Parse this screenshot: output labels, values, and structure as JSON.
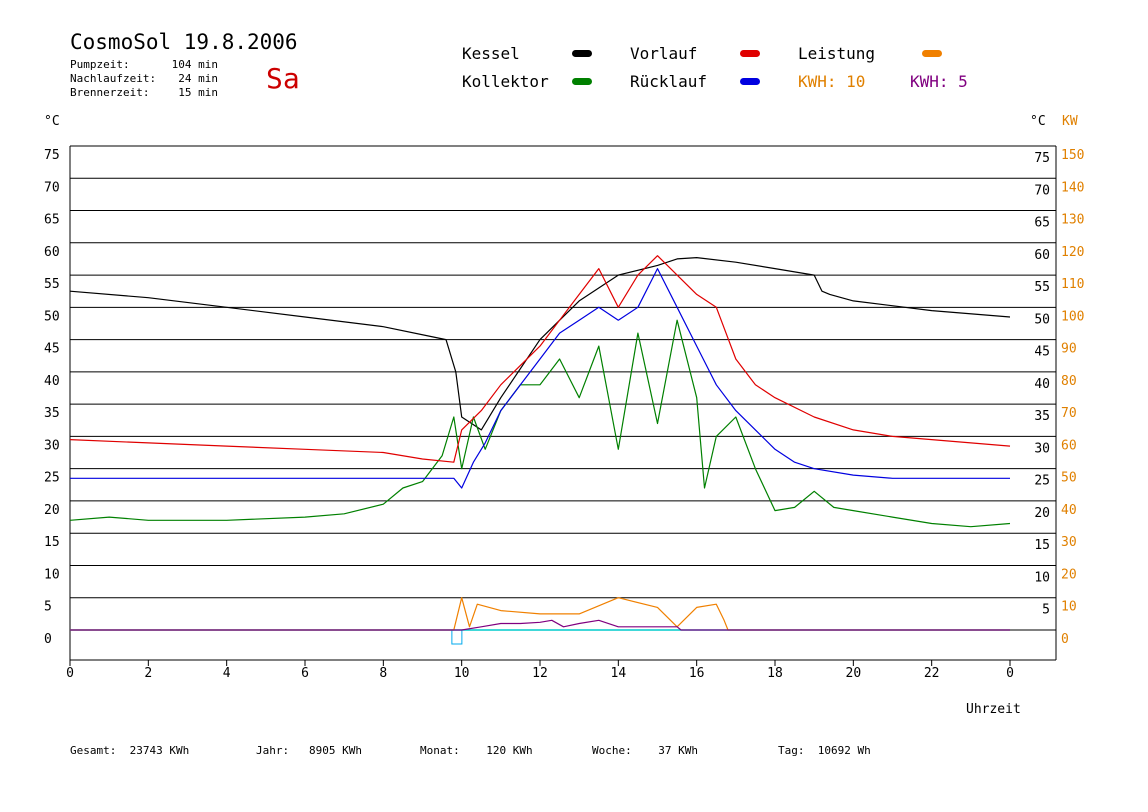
{
  "header": {
    "title": "CosmoSol 19.8.2006",
    "day": "Sa",
    "info": [
      {
        "label": "Pumpzeit:",
        "value": "104 min"
      },
      {
        "label": "Nachlaufzeit:",
        "value": "24 min"
      },
      {
        "label": "Brennerzeit:",
        "value": "15 min"
      }
    ]
  },
  "legend": {
    "kessel": {
      "label": "Kessel",
      "color": "#000000"
    },
    "kollektor": {
      "label": "Kollektor",
      "color": "#008000"
    },
    "vorlauf": {
      "label": "Vorlauf",
      "color": "#e00000"
    },
    "ruecklauf": {
      "label": "Rücklauf",
      "color": "#0000e0"
    },
    "leistung": {
      "label": "Leistung",
      "color": "#f08000"
    },
    "kwh1": {
      "label": "KWH:",
      "value": "10",
      "color": "#e08000"
    },
    "kwh2": {
      "label": "KWH:",
      "value": "5",
      "color": "#800080"
    }
  },
  "axes": {
    "left_unit": "°C",
    "right_unit_c": "°C",
    "right_unit_kw": "KW",
    "x_label": "Uhrzeit"
  },
  "footer": [
    {
      "label": "Gesamt:",
      "value": "23743 KWh"
    },
    {
      "label": "Jahr:",
      "value": "8905 KWh"
    },
    {
      "label": "Monat:",
      "value": "120 KWh"
    },
    {
      "label": "Woche:",
      "value": "37 KWh"
    },
    {
      "label": "Tag:",
      "value": "10692 Wh"
    }
  ],
  "chart_data": {
    "type": "line",
    "x_label": "Uhrzeit",
    "x_range": [
      0,
      24
    ],
    "x_ticks": [
      "0",
      "2",
      "4",
      "6",
      "8",
      "10",
      "12",
      "14",
      "16",
      "18",
      "20",
      "22",
      "0"
    ],
    "y_left_range": [
      0,
      75
    ],
    "y_left_ticks": [
      "0",
      "5",
      "10",
      "15",
      "20",
      "25",
      "30",
      "35",
      "40",
      "45",
      "50",
      "55",
      "60",
      "65",
      "70",
      "75"
    ],
    "y_right_c_ticks": [
      "5",
      "10",
      "15",
      "20",
      "25",
      "30",
      "35",
      "40",
      "45",
      "50",
      "55",
      "60",
      "65",
      "70",
      "75"
    ],
    "y_right_kw_ticks": [
      "0",
      "10",
      "20",
      "30",
      "40",
      "50",
      "60",
      "70",
      "80",
      "90",
      "100",
      "110",
      "120",
      "130",
      "140",
      "150"
    ],
    "grid": "horizontal",
    "series": [
      {
        "name": "Kessel",
        "key": "kessel",
        "color": "#000000",
        "x": [
          0,
          2,
          4,
          6,
          8,
          9.2,
          9.6,
          9.85,
          10,
          10.5,
          11,
          12,
          13,
          14,
          15,
          15.5,
          16,
          17,
          18,
          19,
          19.2,
          19.4,
          20,
          22,
          24
        ],
        "y": [
          52.5,
          51.5,
          50,
          48.5,
          47,
          45.5,
          45,
          40,
          33,
          31,
          36,
          45,
          51,
          55,
          56.5,
          57.5,
          57.7,
          57,
          56,
          55,
          52.5,
          52,
          51,
          49.5,
          48.5
        ]
      },
      {
        "name": "Kollektor",
        "key": "kollektor",
        "color": "#008000",
        "x": [
          0,
          1,
          2,
          4,
          6,
          7,
          8,
          8.5,
          9,
          9.5,
          9.8,
          10,
          10.3,
          10.6,
          11,
          11.5,
          12,
          12.5,
          13,
          13.5,
          14,
          14.5,
          15,
          15.5,
          16,
          16.2,
          16.5,
          17,
          17.5,
          18,
          18.5,
          19,
          19.5,
          20,
          21,
          22,
          23,
          24
        ],
        "y": [
          17,
          17.5,
          17,
          17,
          17.5,
          18,
          19.5,
          22,
          23,
          27,
          33,
          25,
          33,
          28,
          34,
          38,
          38,
          42,
          36,
          44,
          28,
          46,
          32,
          48,
          36,
          22,
          30,
          33,
          25,
          18.5,
          19,
          21.5,
          19,
          18.5,
          17.5,
          16.5,
          16,
          16.5
        ]
      },
      {
        "name": "Vorlauf",
        "key": "vorlauf",
        "color": "#e00000",
        "x": [
          0,
          2,
          4,
          6,
          8,
          9,
          9.8,
          10,
          10.5,
          11,
          11.5,
          12,
          12.5,
          13,
          13.5,
          14,
          14.5,
          15,
          15.5,
          16,
          16.5,
          17,
          17.5,
          18,
          19,
          20,
          21,
          22,
          23,
          24
        ],
        "y": [
          29.5,
          29,
          28.5,
          28,
          27.5,
          26.5,
          26,
          31,
          34,
          38,
          41,
          44,
          48,
          52,
          56,
          50,
          55,
          58,
          55,
          52,
          50,
          42,
          38,
          36,
          33,
          31,
          30,
          29.5,
          29,
          28.5
        ]
      },
      {
        "name": "Rücklauf",
        "key": "ruecklauf",
        "color": "#0000e0",
        "x": [
          0,
          2,
          4,
          6,
          8,
          9,
          9.8,
          10,
          10.3,
          10.6,
          11,
          11.5,
          12,
          12.5,
          13,
          13.5,
          14,
          14.5,
          15,
          15.5,
          16,
          16.5,
          17,
          17.5,
          18,
          18.5,
          19,
          20,
          21,
          22,
          23,
          24
        ],
        "y": [
          23.5,
          23.5,
          23.5,
          23.5,
          23.5,
          23.5,
          23.5,
          22,
          26,
          29,
          34,
          38,
          42,
          46,
          48,
          50,
          48,
          50,
          56,
          50,
          44,
          38,
          34,
          31,
          28,
          26,
          25,
          24,
          23.5,
          23.5,
          23.5,
          23.5
        ]
      },
      {
        "name": "Leistung",
        "key": "leistung",
        "color": "#f08000",
        "x": [
          0,
          9.8,
          10,
          10.2,
          10.4,
          11,
          12,
          13,
          14,
          15,
          15.5,
          16,
          16.5,
          16.7,
          16.8,
          24
        ],
        "y": [
          0,
          0,
          5,
          0.5,
          4,
          3,
          2.5,
          2.5,
          5,
          3.5,
          0.5,
          3.5,
          4,
          1.5,
          0,
          0
        ]
      },
      {
        "name": "KWH",
        "key": "kwh",
        "color": "#800080",
        "x": [
          0,
          10,
          10.5,
          11,
          11.5,
          12,
          12.3,
          12.6,
          13,
          13.5,
          14,
          14.5,
          15,
          15.5,
          15.6,
          24
        ],
        "y": [
          0,
          0,
          0.5,
          1,
          1,
          1.2,
          1.5,
          0.5,
          1,
          1.5,
          0.5,
          0.5,
          0.5,
          0.5,
          0,
          0
        ]
      }
    ]
  }
}
